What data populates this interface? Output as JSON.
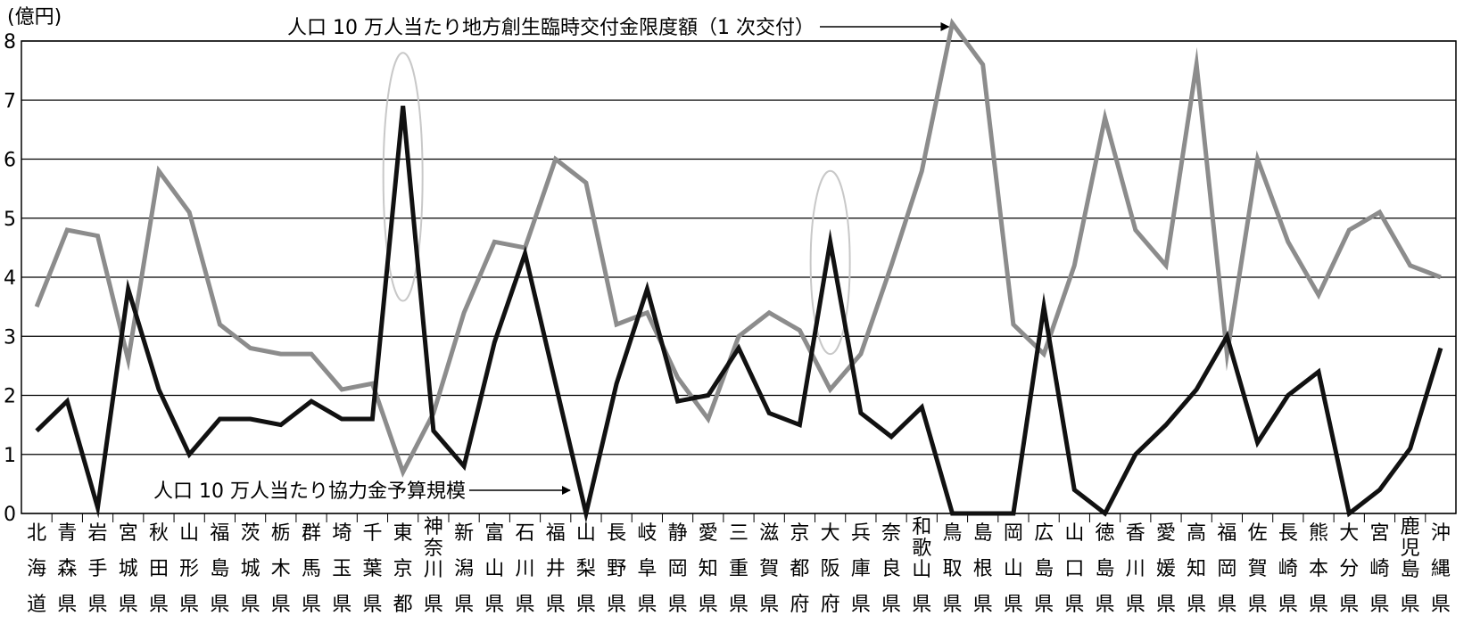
{
  "chart_data": {
    "type": "line",
    "ylabel": "(億円)",
    "ylim": [
      0,
      8
    ],
    "yticks": [
      "0",
      "1",
      "2",
      "3",
      "4",
      "5",
      "6",
      "7",
      "8"
    ],
    "grid": true,
    "categories": [
      "北海道",
      "青森県",
      "岩手県",
      "宮城県",
      "秋田県",
      "山形県",
      "福島県",
      "茨城県",
      "栃木県",
      "群馬県",
      "埼玉県",
      "千葉県",
      "東京都",
      "神奈川県",
      "新潟県",
      "富山県",
      "石川県",
      "福井県",
      "山梨県",
      "長野県",
      "岐阜県",
      "静岡県",
      "愛知県",
      "三重県",
      "滋賀県",
      "京都府",
      "大阪府",
      "兵庫県",
      "奈良県",
      "和歌山県",
      "鳥取県",
      "島根県",
      "岡山県",
      "広島県",
      "山口県",
      "徳島県",
      "香川県",
      "愛媛県",
      "高知県",
      "福岡県",
      "佐賀県",
      "長崎県",
      "熊本県",
      "大分県",
      "宮崎県",
      "鹿児島県",
      "沖縄県"
    ],
    "series": [
      {
        "name": "人口 10 万人当たり地方創生臨時交付金限度額（1 次交付）",
        "color": "#8c8c8c",
        "values": [
          3.5,
          4.8,
          4.7,
          2.6,
          5.8,
          5.1,
          3.2,
          2.8,
          2.7,
          2.7,
          2.1,
          2.2,
          0.7,
          1.7,
          3.4,
          4.6,
          4.5,
          6.0,
          5.6,
          3.2,
          3.4,
          2.3,
          1.6,
          3.0,
          3.4,
          3.1,
          2.1,
          2.7,
          4.2,
          5.8,
          8.3,
          7.6,
          3.2,
          2.7,
          4.2,
          6.7,
          4.8,
          4.2,
          7.6,
          2.7,
          6.0,
          4.6,
          3.7,
          4.8,
          5.1,
          4.2,
          4.0
        ]
      },
      {
        "name": "人口 10 万人当たり協力金予算規模",
        "color": "#111111",
        "values": [
          1.4,
          1.9,
          0.1,
          3.8,
          2.1,
          1.0,
          1.6,
          1.6,
          1.5,
          1.9,
          1.6,
          1.6,
          6.9,
          1.4,
          0.8,
          2.9,
          4.4,
          2.2,
          0.0,
          2.2,
          3.8,
          1.9,
          2.0,
          2.8,
          1.7,
          1.5,
          4.6,
          1.7,
          1.3,
          1.8,
          0.0,
          0.0,
          0.0,
          3.5,
          0.4,
          0.0,
          1.0,
          1.5,
          2.1,
          3.0,
          1.2,
          2.0,
          2.4,
          0.0,
          0.4,
          1.1,
          2.8
        ]
      }
    ],
    "annotations": [
      {
        "text": "人口 10 万人当たり地方創生臨時交付金限度額（1 次交付）",
        "target_series": 0,
        "target_index": 30
      },
      {
        "text": "人口 10 万人当たり協力金予算規模",
        "target_series": 1,
        "target_index": 18
      }
    ],
    "highlights": [
      {
        "category_index": 12,
        "y_range": [
          3.6,
          7.8
        ]
      },
      {
        "category_index": 26,
        "y_range": [
          2.7,
          5.8
        ]
      }
    ]
  }
}
